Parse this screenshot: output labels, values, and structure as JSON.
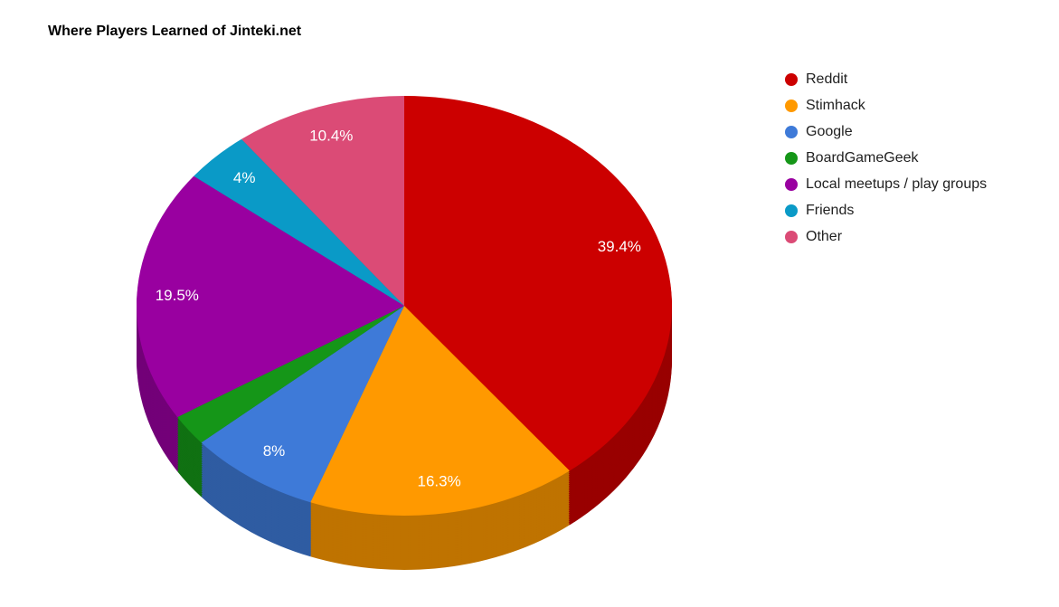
{
  "title": "Where Players Learned of Jinteki.net",
  "chart_data": {
    "type": "pie",
    "is3d": true,
    "title": "Where Players Learned of Jinteki.net",
    "legend_position": "right",
    "start_angle_deg": 0,
    "direction": "clockwise",
    "slices": [
      {
        "label": "Reddit",
        "value": 39.4,
        "display": "39.4%",
        "color": "#cc0000"
      },
      {
        "label": "Stimhack",
        "value": 16.3,
        "display": "16.3%",
        "color": "#ff9900"
      },
      {
        "label": "Google",
        "value": 8.0,
        "display": "8%",
        "color": "#3e7ad8"
      },
      {
        "label": "BoardGameGeek",
        "value": 2.4,
        "display": "",
        "color": "#159618"
      },
      {
        "label": "Local meetups / play groups",
        "value": 19.5,
        "display": "19.5%",
        "color": "#9900a0"
      },
      {
        "label": "Friends",
        "value": 4.0,
        "display": "4%",
        "color": "#0a9ac7"
      },
      {
        "label": "Other",
        "value": 10.4,
        "display": "10.4%",
        "color": "#db4b76"
      }
    ]
  }
}
